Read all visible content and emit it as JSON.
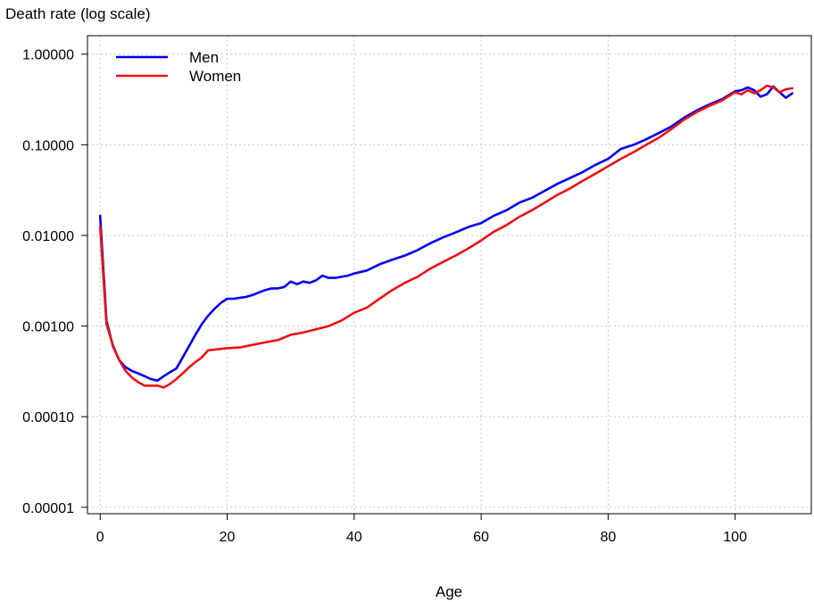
{
  "chart_data": {
    "type": "line",
    "ylabel": "Death rate (log scale)",
    "xlabel": "Age",
    "y_scale": "log",
    "xlim": [
      -2,
      112
    ],
    "ylim": [
      8.5e-06,
      1.6
    ],
    "x_ticks": [
      0,
      20,
      40,
      60,
      80,
      100
    ],
    "x_tick_labels": [
      "0",
      "20",
      "40",
      "60",
      "80",
      "100"
    ],
    "y_ticks": [
      1e-05,
      0.0001,
      0.001,
      0.01,
      0.1,
      1
    ],
    "y_tick_labels": [
      "0.00001",
      "0.00010",
      "0.00100",
      "0.01000",
      "0.10000",
      "1.00000"
    ],
    "grid": true,
    "legend_position": "top-left",
    "series": [
      {
        "name": "Men",
        "color": "#0000ee",
        "x": [
          0,
          1,
          2,
          3,
          4,
          5,
          6,
          7,
          8,
          9,
          10,
          11,
          12,
          13,
          14,
          15,
          16,
          17,
          18,
          19,
          20,
          21,
          22,
          23,
          24,
          25,
          26,
          27,
          28,
          29,
          30,
          31,
          32,
          33,
          34,
          35,
          36,
          37,
          38,
          39,
          40,
          42,
          44,
          46,
          48,
          50,
          52,
          54,
          56,
          58,
          60,
          62,
          64,
          66,
          68,
          70,
          72,
          74,
          76,
          78,
          80,
          82,
          84,
          86,
          88,
          90,
          92,
          94,
          96,
          98,
          100,
          101,
          102,
          103,
          104,
          105,
          106,
          107,
          108,
          109
        ],
        "values": [
          0.0165,
          0.00115,
          0.0006,
          0.00042,
          0.00035,
          0.00032,
          0.0003,
          0.00028,
          0.00026,
          0.00025,
          0.00028,
          0.00031,
          0.00034,
          0.00045,
          0.0006,
          0.0008,
          0.00105,
          0.0013,
          0.00155,
          0.0018,
          0.002,
          0.002,
          0.00205,
          0.0021,
          0.0022,
          0.00235,
          0.0025,
          0.0026,
          0.0026,
          0.0027,
          0.0031,
          0.0029,
          0.0031,
          0.003,
          0.0032,
          0.0036,
          0.0034,
          0.0034,
          0.0035,
          0.0036,
          0.0038,
          0.0041,
          0.0048,
          0.0054,
          0.006,
          0.0069,
          0.0082,
          0.0095,
          0.0108,
          0.0124,
          0.0137,
          0.0165,
          0.019,
          0.023,
          0.026,
          0.031,
          0.037,
          0.043,
          0.05,
          0.06,
          0.07,
          0.09,
          0.1,
          0.115,
          0.135,
          0.16,
          0.2,
          0.24,
          0.28,
          0.32,
          0.39,
          0.4,
          0.43,
          0.4,
          0.34,
          0.36,
          0.44,
          0.38,
          0.33,
          0.37
        ]
      },
      {
        "name": "Women",
        "color": "#ee1111",
        "x": [
          0,
          1,
          2,
          3,
          4,
          5,
          6,
          7,
          8,
          9,
          10,
          11,
          12,
          13,
          14,
          15,
          16,
          17,
          18,
          19,
          20,
          22,
          24,
          26,
          28,
          30,
          32,
          34,
          36,
          38,
          40,
          42,
          44,
          46,
          48,
          50,
          52,
          54,
          56,
          58,
          60,
          62,
          64,
          66,
          68,
          70,
          72,
          74,
          76,
          78,
          80,
          82,
          84,
          86,
          88,
          90,
          92,
          94,
          96,
          98,
          100,
          101,
          102,
          103,
          104,
          105,
          106,
          107,
          108,
          109
        ],
        "values": [
          0.0125,
          0.00105,
          0.00062,
          0.00042,
          0.00032,
          0.00027,
          0.00024,
          0.00022,
          0.00022,
          0.00022,
          0.00021,
          0.00023,
          0.00026,
          0.0003,
          0.00035,
          0.0004,
          0.00045,
          0.00054,
          0.00055,
          0.00056,
          0.00057,
          0.00058,
          0.00062,
          0.00066,
          0.0007,
          0.0008,
          0.00085,
          0.00092,
          0.001,
          0.00115,
          0.0014,
          0.0016,
          0.002,
          0.0025,
          0.003,
          0.0035,
          0.0043,
          0.0051,
          0.006,
          0.0072,
          0.0088,
          0.011,
          0.013,
          0.016,
          0.019,
          0.023,
          0.028,
          0.033,
          0.04,
          0.048,
          0.058,
          0.07,
          0.083,
          0.1,
          0.12,
          0.15,
          0.19,
          0.23,
          0.27,
          0.31,
          0.38,
          0.36,
          0.4,
          0.37,
          0.4,
          0.45,
          0.43,
          0.38,
          0.41,
          0.42
        ]
      }
    ]
  }
}
